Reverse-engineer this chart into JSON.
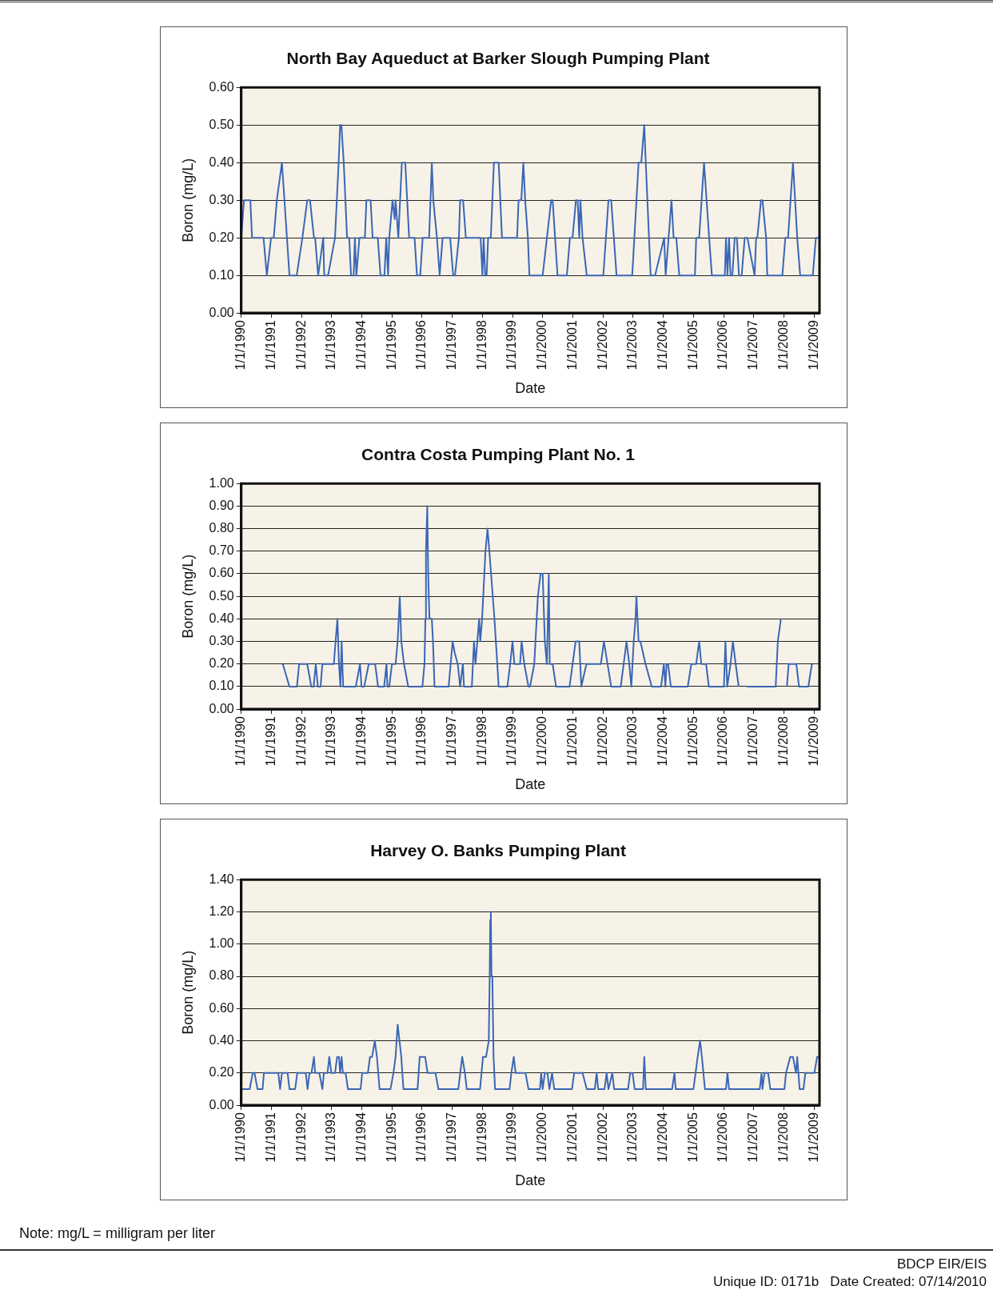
{
  "chart_data": [
    {
      "type": "line",
      "title": "North Bay Aqueduct at Barker Slough Pumping Plant",
      "xlabel": "Date",
      "ylabel": "Boron (mg/L)",
      "color": "#3a66b5",
      "grid": "y",
      "xlim": [
        "1990-01-01",
        "2009-03-08"
      ],
      "xticks": [
        {
          "value": "1990-01-01",
          "label": "1/1/1990"
        },
        {
          "value": "1991-01-01",
          "label": "1/1/1991"
        },
        {
          "value": "1992-01-01",
          "label": "1/1/1992"
        },
        {
          "value": "1993-01-01",
          "label": "1/1/1993"
        },
        {
          "value": "1994-01-01",
          "label": "1/1/1994"
        },
        {
          "value": "1995-01-01",
          "label": "1/1/1995"
        },
        {
          "value": "1996-01-01",
          "label": "1/1/1996"
        },
        {
          "value": "1997-01-01",
          "label": "1/1/1997"
        },
        {
          "value": "1998-01-01",
          "label": "1/1/1998"
        },
        {
          "value": "1999-01-01",
          "label": "1/1/1999"
        },
        {
          "value": "2000-01-01",
          "label": "1/1/2000"
        },
        {
          "value": "2001-01-01",
          "label": "1/1/2001"
        },
        {
          "value": "2002-01-01",
          "label": "1/1/2002"
        },
        {
          "value": "2003-01-01",
          "label": "1/1/2003"
        },
        {
          "value": "2004-01-01",
          "label": "1/1/2004"
        },
        {
          "value": "2005-01-01",
          "label": "1/1/2005"
        },
        {
          "value": "2006-01-01",
          "label": "1/1/2006"
        },
        {
          "value": "2007-01-01",
          "label": "1/1/2007"
        },
        {
          "value": "2008-01-01",
          "label": "1/1/2008"
        },
        {
          "value": "2009-01-01",
          "label": "1/1/2009"
        }
      ],
      "ylim": [
        0,
        0.6
      ],
      "yticks": [
        {
          "value": 0,
          "label": "0.00"
        },
        {
          "value": 0.1,
          "label": "0.10"
        },
        {
          "value": 0.2,
          "label": "0.20"
        },
        {
          "value": 0.3,
          "label": "0.30"
        },
        {
          "value": 0.4,
          "label": "0.40"
        },
        {
          "value": 0.5,
          "label": "0.50"
        },
        {
          "value": 0.6,
          "label": "0.60"
        }
      ],
      "x": [
        "1990-01-01",
        "1990-02-03",
        "1990-04-21",
        "1990-05-12",
        "1990-09-28",
        "1990-11-07",
        "1990-12-28",
        "1991-01-30",
        "1991-03-08",
        "1991-05-09",
        "1991-08-08",
        "1991-11-04",
        "1992-01-12",
        "1992-03-11",
        "1992-04-13",
        "1992-05-31",
        "1992-06-14",
        "1992-07-21",
        "1992-09-21",
        "1992-10-02",
        "1992-11-18",
        "1993-02-10",
        "1993-03-26",
        "1993-04-13",
        "1993-04-28",
        "1993-05-27",
        "1993-07-06",
        "1993-08-01",
        "1993-08-23",
        "1993-09-24",
        "1993-10-09",
        "1993-10-27",
        "1993-12-03",
        "1994-02-07",
        "1994-02-25",
        "1994-04-17",
        "1994-05-12",
        "1994-07-13",
        "1994-08-15",
        "1994-10-02",
        "1994-10-24",
        "1994-11-15",
        "1994-11-29",
        "1995-01-08",
        "1995-02-03",
        "1995-02-14",
        "1995-03-19",
        "1995-05-01",
        "1995-06-11",
        "1995-07-28",
        "1995-10-02",
        "1995-10-31",
        "1995-12-10",
        "1996-01-08",
        "1996-03-26",
        "1996-04-28",
        "1996-05-16",
        "1996-06-29",
        "1996-08-01",
        "1996-09-06",
        "1996-12-06",
        "1997-01-12",
        "1997-02-03",
        "1997-03-22",
        "1997-04-06",
        "1997-05-12",
        "1997-06-14",
        "1997-12-10",
        "1998-01-01",
        "1998-01-16",
        "1998-02-03",
        "1998-02-21",
        "1998-03-11",
        "1998-04-13",
        "1998-05-20",
        "1998-07-17",
        "1998-08-26",
        "1999-02-25",
        "1999-03-15",
        "1999-04-17",
        "1999-05-12",
        "1999-06-03",
        "1999-07-06",
        "1999-07-24",
        "2000-01-01",
        "2000-04-13",
        "2000-05-01",
        "2000-06-29",
        "2000-10-20",
        "2000-11-26",
        "2000-12-28",
        "2001-02-07",
        "2001-02-28",
        "2001-03-19",
        "2001-04-02",
        "2001-04-28",
        "2001-06-18",
        "2002-01-05",
        "2002-03-08",
        "2002-04-10",
        "2002-06-14",
        "2002-12-21",
        "2003-03-08",
        "2003-04-10",
        "2003-05-16",
        "2003-06-03",
        "2003-08-01",
        "2003-09-24",
        "2004-01-12",
        "2004-01-30",
        "2004-04-10",
        "2004-05-05",
        "2004-06-07",
        "2004-07-13",
        "2005-01-19",
        "2005-02-03",
        "2005-03-11",
        "2005-05-09",
        "2005-07-10",
        "2005-08-12",
        "2006-01-16",
        "2006-01-30",
        "2006-02-17",
        "2006-03-08",
        "2006-03-26",
        "2006-04-17",
        "2006-05-16",
        "2006-06-11",
        "2006-07-06",
        "2006-08-08",
        "2006-09-14",
        "2006-10-16",
        "2007-01-12",
        "2007-01-30",
        "2007-02-14",
        "2007-03-30",
        "2007-04-17",
        "2007-05-31",
        "2007-06-14",
        "2007-12-14",
        "2008-01-19",
        "2008-02-21",
        "2008-04-21",
        "2008-06-11",
        "2008-07-17",
        "2008-12-17",
        "2009-01-23",
        "2009-02-25"
      ],
      "values": [
        0.2,
        0.3,
        0.3,
        0.2,
        0.2,
        0.1,
        0.2,
        0.2,
        0.3,
        0.4,
        0.1,
        0.1,
        0.2,
        0.3,
        0.3,
        0.2,
        0.2,
        0.1,
        0.2,
        0.1,
        0.1,
        0.2,
        0.4,
        0.5,
        0.5,
        0.4,
        0.2,
        0.2,
        0.1,
        0.1,
        0.2,
        0.1,
        0.2,
        0.2,
        0.3,
        0.3,
        0.2,
        0.2,
        0.1,
        0.1,
        0.2,
        0.1,
        0.2,
        0.3,
        0.25,
        0.3,
        0.2,
        0.4,
        0.4,
        0.2,
        0.2,
        0.1,
        0.1,
        0.2,
        0.2,
        0.4,
        0.3,
        0.2,
        0.1,
        0.2,
        0.2,
        0.1,
        0.1,
        0.2,
        0.3,
        0.3,
        0.2,
        0.2,
        0.1,
        0.2,
        0.1,
        0.1,
        0.2,
        0.2,
        0.4,
        0.4,
        0.2,
        0.2,
        0.3,
        0.3,
        0.4,
        0.3,
        0.2,
        0.1,
        0.1,
        0.3,
        0.3,
        0.1,
        0.1,
        0.2,
        0.2,
        0.3,
        0.3,
        0.2,
        0.3,
        0.2,
        0.1,
        0.1,
        0.3,
        0.3,
        0.1,
        0.1,
        0.4,
        0.4,
        0.5,
        0.4,
        0.1,
        0.1,
        0.2,
        0.1,
        0.3,
        0.2,
        0.2,
        0.1,
        0.1,
        0.2,
        0.2,
        0.4,
        0.2,
        0.1,
        0.1,
        0.2,
        0.1,
        0.2,
        0.1,
        0.1,
        0.2,
        0.2,
        0.1,
        0.1,
        0.2,
        0.2,
        0.1,
        0.2,
        0.2,
        0.3,
        0.3,
        0.2,
        0.1,
        0.1,
        0.2,
        0.2,
        0.4,
        0.2,
        0.1,
        0.1,
        0.2,
        0.2
      ]
    },
    {
      "type": "line",
      "title": "Contra Costa Pumping Plant No. 1",
      "xlabel": "Date",
      "ylabel": "Boron (mg/L)",
      "color": "#3a66b5",
      "grid": "y",
      "xlim": [
        "1990-01-01",
        "2009-03-08"
      ],
      "xticks": [
        {
          "value": "1990-01-01",
          "label": "1/1/1990"
        },
        {
          "value": "1991-01-01",
          "label": "1/1/1991"
        },
        {
          "value": "1992-01-01",
          "label": "1/1/1992"
        },
        {
          "value": "1993-01-01",
          "label": "1/1/1993"
        },
        {
          "value": "1994-01-01",
          "label": "1/1/1994"
        },
        {
          "value": "1995-01-01",
          "label": "1/1/1995"
        },
        {
          "value": "1996-01-01",
          "label": "1/1/1996"
        },
        {
          "value": "1997-01-01",
          "label": "1/1/1997"
        },
        {
          "value": "1998-01-01",
          "label": "1/1/1998"
        },
        {
          "value": "1999-01-01",
          "label": "1/1/1999"
        },
        {
          "value": "2000-01-01",
          "label": "1/1/2000"
        },
        {
          "value": "2001-01-01",
          "label": "1/1/2001"
        },
        {
          "value": "2002-01-01",
          "label": "1/1/2002"
        },
        {
          "value": "2003-01-01",
          "label": "1/1/2003"
        },
        {
          "value": "2004-01-01",
          "label": "1/1/2004"
        },
        {
          "value": "2005-01-01",
          "label": "1/1/2005"
        },
        {
          "value": "2006-01-01",
          "label": "1/1/2006"
        },
        {
          "value": "2007-01-01",
          "label": "1/1/2007"
        },
        {
          "value": "2008-01-01",
          "label": "1/1/2008"
        },
        {
          "value": "2009-01-01",
          "label": "1/1/2009"
        }
      ],
      "ylim": [
        0,
        1
      ],
      "yticks": [
        {
          "value": 0,
          "label": "0.00"
        },
        {
          "value": 0.1,
          "label": "0.10"
        },
        {
          "value": 0.2,
          "label": "0.20"
        },
        {
          "value": 0.3,
          "label": "0.30"
        },
        {
          "value": 0.4,
          "label": "0.40"
        },
        {
          "value": 0.5,
          "label": "0.50"
        },
        {
          "value": 0.6,
          "label": "0.60"
        },
        {
          "value": 0.7,
          "label": "0.70"
        },
        {
          "value": 0.8,
          "label": "0.80"
        },
        {
          "value": 0.9,
          "label": "0.90"
        },
        {
          "value": 1,
          "label": "1.00"
        }
      ],
      "x": [
        "1991-05-20",
        "1991-08-08",
        "1991-11-07",
        "1991-12-03",
        "1992-03-11",
        "1992-04-28",
        "1992-05-27",
        "1992-06-22",
        "1992-07-17",
        "1992-08-19",
        "1992-09-10",
        "1993-01-27",
        "1993-02-17",
        "1993-03-11",
        "1993-03-30",
        "1993-04-17",
        "1993-05-01",
        "1993-05-20",
        "1993-10-20",
        "1993-12-10",
        "1993-12-28",
        "1994-01-30",
        "1994-03-26",
        "1994-06-11",
        "1994-07-17",
        "1994-09-28",
        "1994-10-27",
        "1994-11-07",
        "1994-11-29",
        "1995-01-01",
        "1995-02-14",
        "1995-03-11",
        "1995-04-06",
        "1995-04-24",
        "1995-05-27",
        "1995-07-17",
        "1996-01-05",
        "1996-01-30",
        "1996-02-10",
        "1996-02-17",
        "1996-03-04",
        "1996-03-15",
        "1996-03-30",
        "1996-04-28",
        "1996-05-12",
        "1996-05-31",
        "1996-11-18",
        "1997-01-05",
        "1997-01-30",
        "1997-03-08",
        "1997-04-06",
        "1997-05-09",
        "1997-05-23",
        "1997-08-26",
        "1997-09-21",
        "1997-10-09",
        "1997-11-22",
        "1997-12-06",
        "1997-12-28",
        "1998-02-07",
        "1998-03-04",
        "1998-03-26",
        "1998-05-27",
        "1998-07-17",
        "1998-10-31",
        "1998-12-03",
        "1999-01-01",
        "1999-01-23",
        "1999-04-02",
        "1999-04-21",
        "1999-05-23",
        "1999-07-13",
        "1999-08-01",
        "1999-09-21",
        "1999-11-04",
        "1999-12-06",
        "2000-01-01",
        "2000-01-27",
        "2000-02-21",
        "2000-03-04",
        "2000-03-15",
        "2000-03-26",
        "2000-05-01",
        "2000-06-11",
        "2000-11-22",
        "2001-02-03",
        "2001-03-19",
        "2001-04-13",
        "2001-06-14",
        "2001-12-06",
        "2002-01-12",
        "2002-04-10",
        "2002-08-04",
        "2002-10-13",
        "2002-11-15",
        "2002-12-10",
        "2003-01-08",
        "2003-01-30",
        "2003-02-10",
        "2003-03-08",
        "2003-03-30",
        "2003-05-31",
        "2003-08-15",
        "2003-12-06",
        "2004-01-08",
        "2004-01-27",
        "2004-02-10",
        "2004-02-28",
        "2004-04-02",
        "2004-10-24",
        "2004-12-06",
        "2005-02-03",
        "2005-03-11",
        "2005-04-06",
        "2005-06-03",
        "2005-07-06",
        "2006-01-05",
        "2006-01-23",
        "2006-02-14",
        "2006-03-26",
        "2006-04-24",
        "2006-05-27",
        "2006-07-03",
        "2006-08-19",
        "2006-10-05",
        "2007-09-24",
        "2007-10-20",
        "2007-11-26",
        "2008-01-01",
        "2008-02-07",
        "2008-02-28",
        "2008-05-31",
        "2008-07-03",
        "2008-10-24",
        "2008-12-06"
      ],
      "values": [
        0.2,
        0.1,
        0.1,
        0.2,
        0.2,
        0.1,
        0.1,
        0.2,
        0.1,
        0.1,
        0.2,
        0.2,
        0.3,
        0.4,
        0.2,
        0.1,
        0.3,
        0.1,
        0.1,
        0.2,
        0.1,
        0.1,
        0.2,
        0.2,
        0.1,
        0.1,
        0.2,
        0.1,
        0.1,
        0.2,
        0.2,
        0.3,
        0.5,
        0.3,
        0.2,
        0.1,
        0.1,
        0.2,
        0.4,
        0.7,
        0.9,
        0.6,
        0.4,
        0.4,
        0.3,
        0.1,
        0.1,
        0.3,
        0.25,
        0.2,
        0.1,
        0.2,
        0.1,
        0.1,
        0.3,
        0.2,
        0.4,
        0.3,
        0.4,
        0.7,
        0.8,
        0.7,
        0.4,
        0.1,
        0.1,
        0.2,
        0.3,
        0.2,
        0.2,
        0.3,
        0.2,
        0.1,
        0.1,
        0.2,
        0.5,
        0.6,
        0.6,
        0.3,
        0.2,
        0.4,
        0.6,
        0.2,
        0.2,
        0.1,
        0.1,
        0.3,
        0.3,
        0.1,
        0.2,
        0.2,
        0.3,
        0.1,
        0.1,
        0.3,
        0.2,
        0.1,
        0.3,
        0.4,
        0.5,
        0.3,
        0.3,
        0.2,
        0.1,
        0.1,
        0.2,
        0.1,
        0.2,
        0.2,
        0.1,
        0.1,
        0.2,
        0.2,
        0.3,
        0.2,
        0.2,
        0.1,
        0.1,
        0.3,
        0.1,
        0.2,
        0.3,
        0.2,
        0.1,
        null,
        0.1,
        0.1,
        0.3,
        0.4,
        null,
        0.1,
        0.2,
        0.2,
        0.1,
        0.1,
        0.2
      ]
    },
    {
      "type": "line",
      "title": "Harvey O. Banks Pumping Plant",
      "xlabel": "Date",
      "ylabel": "Boron (mg/L)",
      "color": "#3a66b5",
      "grid": "y",
      "xlim": [
        "1990-01-01",
        "2009-03-08"
      ],
      "xticks": [
        {
          "value": "1990-01-01",
          "label": "1/1/1990"
        },
        {
          "value": "1991-01-01",
          "label": "1/1/1991"
        },
        {
          "value": "1992-01-01",
          "label": "1/1/1992"
        },
        {
          "value": "1993-01-01",
          "label": "1/1/1993"
        },
        {
          "value": "1994-01-01",
          "label": "1/1/1994"
        },
        {
          "value": "1995-01-01",
          "label": "1/1/1995"
        },
        {
          "value": "1996-01-01",
          "label": "1/1/1996"
        },
        {
          "value": "1997-01-01",
          "label": "1/1/1997"
        },
        {
          "value": "1998-01-01",
          "label": "1/1/1998"
        },
        {
          "value": "1999-01-01",
          "label": "1/1/1999"
        },
        {
          "value": "2000-01-01",
          "label": "1/1/2000"
        },
        {
          "value": "2001-01-01",
          "label": "1/1/2001"
        },
        {
          "value": "2002-01-01",
          "label": "1/1/2002"
        },
        {
          "value": "2003-01-01",
          "label": "1/1/2003"
        },
        {
          "value": "2004-01-01",
          "label": "1/1/2004"
        },
        {
          "value": "2005-01-01",
          "label": "1/1/2005"
        },
        {
          "value": "2006-01-01",
          "label": "1/1/2006"
        },
        {
          "value": "2007-01-01",
          "label": "1/1/2007"
        },
        {
          "value": "2008-01-01",
          "label": "1/1/2008"
        },
        {
          "value": "2009-01-01",
          "label": "1/1/2009"
        }
      ],
      "ylim": [
        0,
        1.4
      ],
      "yticks": [
        {
          "value": 0,
          "label": "0.00"
        },
        {
          "value": 0.2,
          "label": "0.20"
        },
        {
          "value": 0.4,
          "label": "0.40"
        },
        {
          "value": 0.6,
          "label": "0.60"
        },
        {
          "value": 0.8,
          "label": "0.80"
        },
        {
          "value": 1,
          "label": "1.00"
        },
        {
          "value": 1.2,
          "label": "1.20"
        },
        {
          "value": 1.4,
          "label": "1.40"
        }
      ],
      "x": [
        "1990-01-01",
        "1990-04-13",
        "1990-05-20",
        "1990-06-11",
        "1990-07-17",
        "1990-09-17",
        "1990-10-02",
        "1991-03-26",
        "1991-04-17",
        "1991-05-09",
        "1991-07-17",
        "1991-08-08",
        "1991-10-16",
        "1991-11-11",
        "1992-02-21",
        "1992-03-15",
        "1992-04-06",
        "1992-05-01",
        "1992-05-31",
        "1992-06-14",
        "1992-08-04",
        "1992-09-10",
        "1992-09-28",
        "1992-11-11",
        "1992-12-03",
        "1992-12-28",
        "1993-02-10",
        "1993-03-08",
        "1993-03-30",
        "1993-04-13",
        "1993-05-01",
        "1993-05-16",
        "1993-06-18",
        "1993-07-17",
        "1993-12-17",
        "1994-01-05",
        "1994-03-15",
        "1994-04-10",
        "1994-05-05",
        "1994-06-07",
        "1994-07-03",
        "1994-08-04",
        "1994-12-14",
        "1995-01-19",
        "1995-02-14",
        "1995-03-11",
        "1995-04-02",
        "1995-04-24",
        "1995-05-20",
        "1995-11-07",
        "1995-12-03",
        "1996-02-07",
        "1996-03-08",
        "1996-06-11",
        "1996-07-17",
        "1997-03-15",
        "1997-05-01",
        "1997-06-03",
        "1997-06-25",
        "1997-12-03",
        "1998-01-08",
        "1998-02-14",
        "1998-03-19",
        "1998-03-30",
        "1998-04-06",
        "1998-04-13",
        "1998-04-21",
        "1998-05-01",
        "1998-05-16",
        "1998-06-03",
        "1998-11-26",
        "1998-12-17",
        "1999-01-16",
        "1999-02-07",
        "1999-06-07",
        "1999-07-13",
        "1999-11-29",
        "1999-12-14",
        "2000-01-01",
        "2000-01-27",
        "2000-02-28",
        "2000-03-22",
        "2000-04-24",
        "2000-05-20",
        "2000-12-21",
        "2001-01-16",
        "2001-04-28",
        "2001-06-18",
        "2001-09-24",
        "2001-10-16",
        "2001-11-04",
        "2002-01-19",
        "2002-02-14",
        "2002-03-08",
        "2002-04-24",
        "2002-05-16",
        "2002-10-31",
        "2002-11-26",
        "2002-12-25",
        "2003-01-19",
        "2003-05-01",
        "2003-05-16",
        "2003-06-03",
        "2004-04-17",
        "2004-05-16",
        "2004-05-31",
        "2005-01-01",
        "2005-02-21",
        "2005-03-22",
        "2005-04-13",
        "2005-05-20",
        "2006-01-30",
        "2006-02-17",
        "2006-03-08",
        "2007-03-15",
        "2007-04-06",
        "2007-04-17",
        "2007-05-12",
        "2007-06-25",
        "2007-07-21",
        "2008-01-08",
        "2008-01-27",
        "2008-03-19",
        "2008-04-21",
        "2008-05-27",
        "2008-06-11",
        "2008-07-10",
        "2008-08-26",
        "2008-09-17",
        "2009-01-05",
        "2009-02-07",
        "2009-02-25"
      ],
      "values": [
        0.1,
        0.1,
        0.2,
        0.2,
        0.1,
        0.1,
        0.2,
        0.2,
        0.1,
        0.2,
        0.2,
        0.1,
        0.1,
        0.2,
        0.2,
        0.1,
        0.2,
        0.2,
        0.3,
        0.2,
        0.2,
        0.1,
        0.2,
        0.2,
        0.3,
        0.2,
        0.2,
        0.3,
        0.3,
        0.2,
        0.3,
        0.2,
        0.2,
        0.1,
        0.1,
        0.2,
        0.2,
        0.3,
        0.3,
        0.4,
        0.3,
        0.1,
        0.1,
        0.2,
        0.3,
        0.5,
        0.4,
        0.3,
        0.1,
        0.1,
        0.3,
        0.3,
        0.2,
        0.2,
        0.1,
        0.1,
        0.3,
        0.2,
        0.1,
        0.1,
        0.3,
        0.3,
        0.4,
        0.8,
        1.15,
        1.2,
        0.8,
        0.8,
        0.3,
        0.1,
        0.1,
        0.2,
        0.3,
        0.2,
        0.2,
        0.1,
        0.1,
        0.2,
        0.1,
        0.2,
        0.2,
        0.1,
        0.2,
        0.1,
        0.1,
        0.2,
        0.2,
        0.1,
        0.1,
        0.2,
        0.1,
        0.1,
        0.2,
        0.1,
        0.2,
        0.1,
        0.1,
        0.2,
        0.2,
        0.1,
        0.1,
        0.3,
        0.1,
        0.1,
        0.2,
        0.1,
        0.1,
        0.3,
        0.4,
        0.3,
        0.1,
        0.1,
        0.2,
        0.1,
        0.1,
        0.2,
        0.1,
        0.2,
        0.2,
        0.1,
        0.1,
        0.2,
        0.3,
        0.3,
        0.2,
        0.3,
        0.1,
        0.1,
        0.2,
        0.2,
        0.3,
        0.3
      ],
      "annotations": [
        "Note: mg/L = milligram per liter",
        "BDCP EIR/EIS",
        "Unique ID: 0171b   Date Created: 07/14/2010"
      ]
    }
  ]
}
